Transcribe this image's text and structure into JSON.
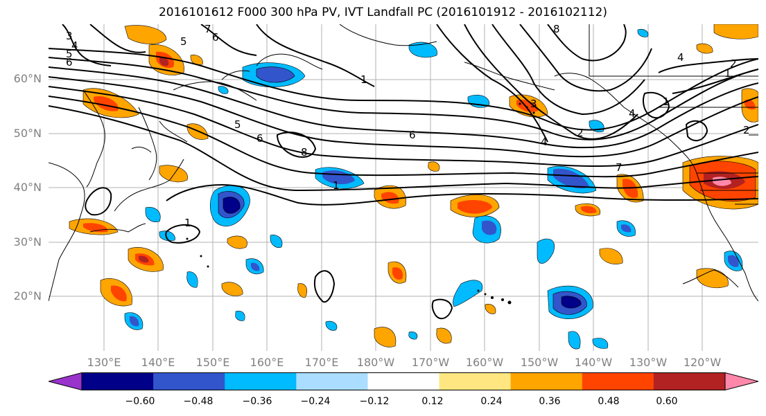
{
  "title": "2016101612 F000 300 hPa PV, IVT Landfall PC (2016101912 - 2016102112)",
  "lat_labels": [
    "60°N",
    "50°N",
    "40°N",
    "30°N",
    "20°N"
  ],
  "lon_labels": [
    "130°E",
    "140°E",
    "150°E",
    "160°E",
    "170°E",
    "180°W",
    "170°W",
    "160°W",
    "150°W",
    "140°W",
    "130°W",
    "120°W"
  ],
  "colorbar": {
    "colors": [
      "#9933cc",
      "#000088",
      "#3355cc",
      "#00bbff",
      "#aaddff",
      "#ffffff",
      "#ffe680",
      "#ffa500",
      "#ff4400",
      "#b22222",
      "#ff88aa"
    ],
    "tick_labels": [
      "−0.60",
      "−0.48",
      "−0.36",
      "−0.24",
      "−0.12",
      "0.12",
      "0.24",
      "0.36",
      "0.48",
      "0.60"
    ]
  },
  "contour_labels": [
    "3",
    "4",
    "5",
    "6",
    "5",
    "6",
    "7",
    "1",
    "5",
    "6",
    "6",
    "8",
    "1",
    "1",
    "4",
    "7",
    "3",
    "2",
    "4",
    "2",
    "1",
    "4",
    "1",
    "2",
    "8"
  ]
}
